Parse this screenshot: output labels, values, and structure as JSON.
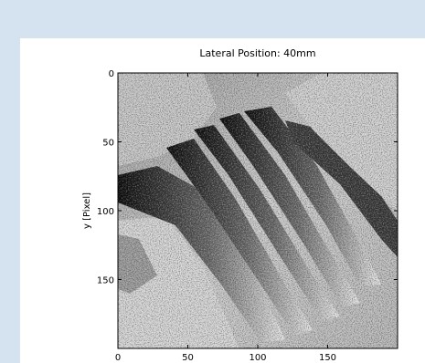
{
  "chart_data": {
    "type": "heatmap",
    "title": "Lateral Position: 40mm",
    "xlabel": "",
    "ylabel": "y [Pixel]",
    "xlim": [
      0,
      200
    ],
    "ylim": [
      200,
      0
    ],
    "xticks": [
      0,
      50,
      100,
      150
    ],
    "yticks": [
      0,
      50,
      100,
      150
    ],
    "colormap": "gray",
    "content": "wrapped phase map with diagonal fringe bands"
  }
}
